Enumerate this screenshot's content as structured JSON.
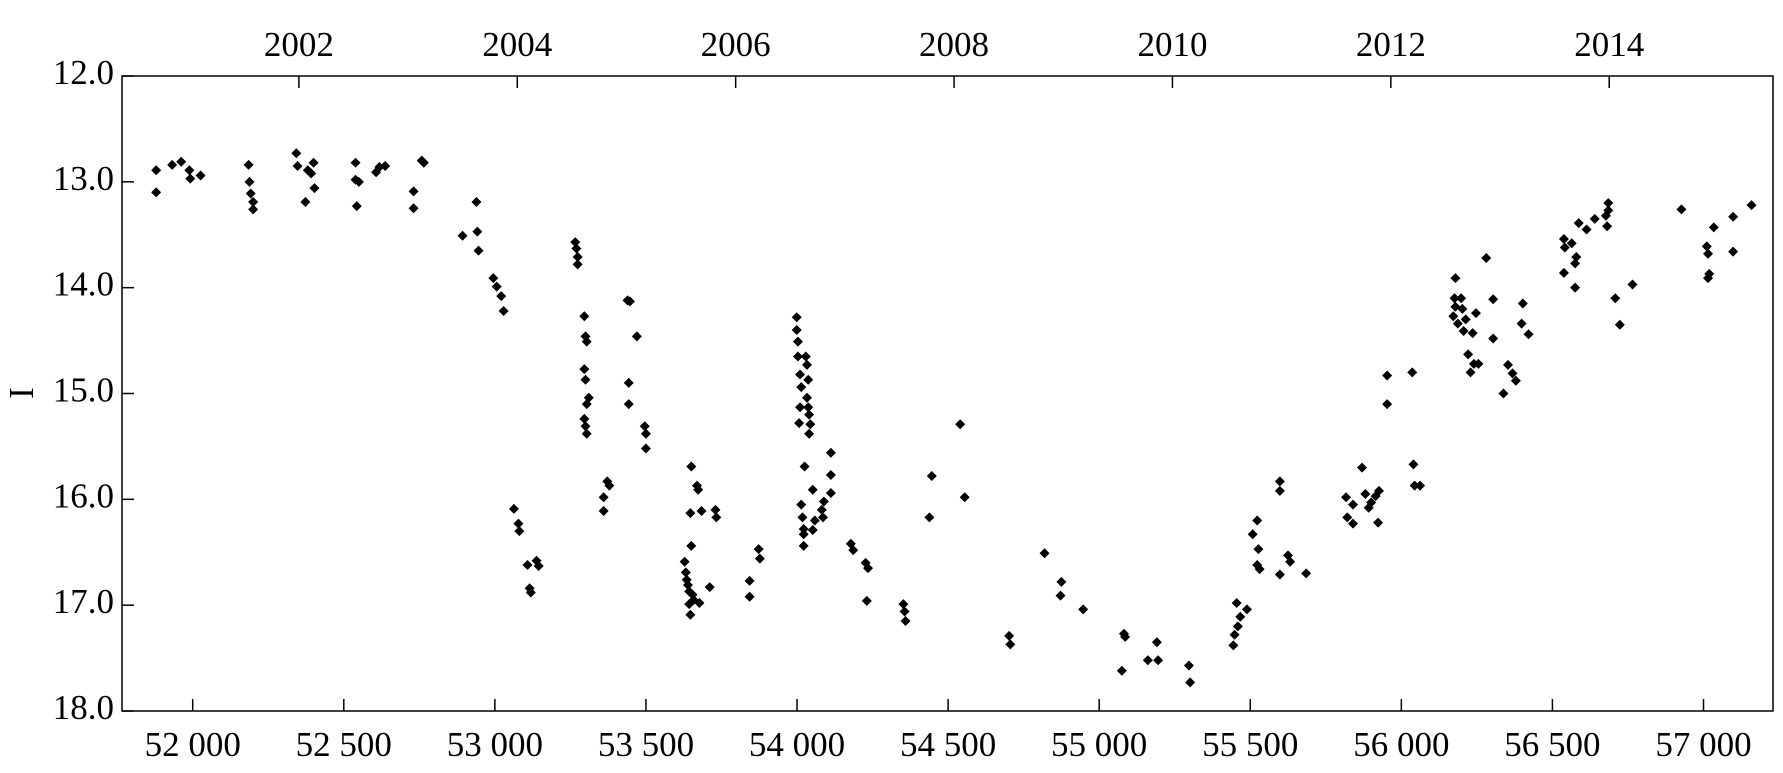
{
  "chart_data": {
    "type": "scatter",
    "ylabel": "I",
    "color": "#000000",
    "marker": "diamond",
    "grid": false,
    "y_inverted": true,
    "xlim": [
      51766,
      57230
    ],
    "xticks": [
      {
        "value": 52000,
        "label": "52 000"
      },
      {
        "value": 52500,
        "label": "52 500"
      },
      {
        "value": 53000,
        "label": "53 000"
      },
      {
        "value": 53500,
        "label": "53 500"
      },
      {
        "value": 54000,
        "label": "54 000"
      },
      {
        "value": 54500,
        "label": "54 500"
      },
      {
        "value": 55000,
        "label": "55 000"
      },
      {
        "value": 55500,
        "label": "55 500"
      },
      {
        "value": 56000,
        "label": "56 000"
      },
      {
        "value": 56500,
        "label": "56 500"
      },
      {
        "value": 57000,
        "label": "57 000"
      }
    ],
    "x2lim": [
      2000.38,
      2015.5
    ],
    "x2ticks": [
      2002,
      2004,
      2006,
      2008,
      2010,
      2012,
      2014
    ],
    "ylim": [
      12.0,
      18.0
    ],
    "yticks": [
      {
        "value": 12,
        "label": "12.0"
      },
      {
        "value": 13,
        "label": "13.0"
      },
      {
        "value": 14,
        "label": "14.0"
      },
      {
        "value": 15,
        "label": "15.0"
      },
      {
        "value": 16,
        "label": "16.0"
      },
      {
        "value": 17,
        "label": "17.0"
      },
      {
        "value": 18,
        "label": "18.0"
      }
    ],
    "x": [
      51879,
      51879,
      51932,
      51962,
      51989,
      51992,
      52026,
      52185,
      52188,
      52192,
      52200,
      52200,
      52343,
      52347,
      52373,
      52381,
      52392,
      52400,
      52403,
      52539,
      52539,
      52543,
      52550,
      52607,
      52618,
      52637,
      52731,
      52731,
      52758,
      52765,
      52893,
      52939,
      52942,
      52946,
      52995,
      53006,
      53021,
      53029,
      53063,
      53078,
      53081,
      53108,
      53115,
      53119,
      53138,
      53145,
      53266,
      53270,
      53274,
      53274,
      53296,
      53300,
      53304,
      53296,
      53300,
      53304,
      53296,
      53300,
      53304,
      53311,
      53372,
      53379,
      53360,
      53360,
      53439,
      53447,
      53443,
      53443,
      53470,
      53496,
      53500,
      53500,
      53628,
      53632,
      53635,
      53639,
      53643,
      53643,
      53647,
      53650,
      53647,
      53650,
      53654,
      53658,
      53669,
      53673,
      53677,
      53684,
      53711,
      53730,
      53733,
      53843,
      53843,
      53873,
      53877,
      53999,
      53999,
      54003,
      54003,
      54010,
      54014,
      54010,
      54007,
      54014,
      54018,
      54022,
      54022,
      54022,
      54025,
      54029,
      54033,
      54037,
      54033,
      54037,
      54040,
      54044,
      54040,
      54052,
      54052,
      54059,
      54082,
      54086,
      54089,
      54112,
      54112,
      54112,
      54178,
      54186,
      54227,
      54235,
      54231,
      54352,
      54356,
      54359,
      54446,
      54438,
      54540,
      54555,
      54702,
      54706,
      54819,
      54875,
      54872,
      54947,
      55075,
      55082,
      55086,
      55161,
      55191,
      55195,
      55297,
      55301,
      55444,
      55448,
      55455,
      55459,
      55467,
      55489,
      55508,
      55523,
      55527,
      55523,
      55531,
      55598,
      55598,
      55598,
      55625,
      55632,
      55685,
      55817,
      55821,
      55840,
      55840,
      55870,
      55881,
      55892,
      55900,
      55915,
      55923,
      55926,
      55953,
      55953,
      56036,
      56040,
      56044,
      56062,
      56179,
      56176,
      56179,
      56172,
      56187,
      56198,
      56202,
      56213,
      56206,
      56221,
      56229,
      56236,
      56247,
      56240,
      56255,
      56281,
      56304,
      56304,
      56338,
      56353,
      56368,
      56379,
      56398,
      56402,
      56421,
      56538,
      56541,
      56538,
      56564,
      56575,
      56579,
      56575,
      56587,
      56613,
      56640,
      56677,
      56685,
      56681,
      56685,
      56708,
      56723,
      56765,
      56927,
      57015,
      57019,
      57015,
      57034,
      57011,
      57098,
      57098,
      57159
    ],
    "values": [
      12.89,
      13.1,
      12.84,
      12.81,
      12.89,
      12.97,
      12.94,
      12.84,
      13.0,
      13.11,
      13.19,
      13.26,
      12.73,
      12.85,
      13.19,
      12.89,
      12.92,
      12.82,
      13.06,
      12.82,
      12.98,
      13.23,
      13.0,
      12.91,
      12.86,
      12.85,
      13.09,
      13.25,
      12.8,
      12.82,
      13.51,
      13.19,
      13.47,
      13.65,
      13.91,
      13.99,
      14.08,
      14.22,
      16.09,
      16.23,
      16.3,
      16.62,
      16.84,
      16.88,
      16.58,
      16.63,
      13.57,
      13.63,
      13.71,
      13.78,
      14.27,
      14.46,
      14.51,
      14.77,
      14.87,
      15.1,
      15.24,
      15.31,
      15.38,
      15.04,
      15.83,
      15.87,
      15.98,
      16.11,
      14.12,
      14.13,
      14.9,
      15.1,
      14.46,
      15.31,
      15.38,
      15.52,
      16.59,
      16.69,
      16.76,
      16.81,
      16.87,
      16.99,
      17.09,
      15.69,
      16.13,
      16.44,
      16.9,
      16.95,
      15.87,
      15.91,
      16.98,
      16.11,
      16.83,
      16.1,
      16.17,
      16.77,
      16.92,
      16.47,
      16.56,
      14.28,
      14.4,
      14.51,
      14.65,
      14.82,
      14.94,
      15.13,
      15.28,
      16.05,
      16.17,
      16.28,
      16.33,
      16.44,
      15.69,
      14.65,
      14.73,
      14.87,
      15.04,
      15.13,
      15.2,
      15.29,
      15.38,
      15.91,
      16.29,
      16.2,
      16.1,
      16.17,
      16.02,
      15.56,
      15.77,
      15.94,
      16.42,
      16.48,
      16.6,
      16.65,
      16.96,
      16.99,
      17.06,
      17.15,
      15.78,
      16.17,
      15.29,
      15.98,
      17.29,
      17.37,
      16.51,
      16.78,
      16.91,
      17.04,
      17.62,
      17.27,
      17.3,
      17.52,
      17.35,
      17.52,
      17.57,
      17.73,
      17.38,
      17.28,
      16.98,
      17.2,
      17.11,
      17.04,
      16.33,
      16.2,
      16.47,
      16.62,
      16.66,
      15.83,
      15.92,
      16.71,
      16.53,
      16.59,
      16.7,
      15.98,
      16.17,
      16.23,
      16.05,
      15.7,
      15.95,
      16.08,
      16.03,
      15.97,
      16.22,
      15.92,
      14.83,
      15.1,
      14.8,
      15.67,
      15.87,
      15.87,
      13.91,
      14.1,
      14.18,
      14.27,
      14.34,
      14.1,
      14.2,
      14.3,
      14.41,
      14.63,
      14.8,
      14.43,
      14.24,
      14.72,
      14.72,
      13.72,
      14.11,
      14.48,
      15.0,
      14.73,
      14.81,
      14.88,
      14.34,
      14.15,
      14.44,
      13.54,
      13.62,
      13.86,
      13.58,
      13.77,
      13.71,
      14.0,
      13.39,
      13.45,
      13.35,
      13.32,
      13.27,
      13.42,
      13.2,
      14.1,
      14.35,
      13.97,
      13.26,
      13.91,
      13.87,
      13.68,
      13.43,
      13.61,
      13.33,
      13.66,
      13.22
    ]
  }
}
